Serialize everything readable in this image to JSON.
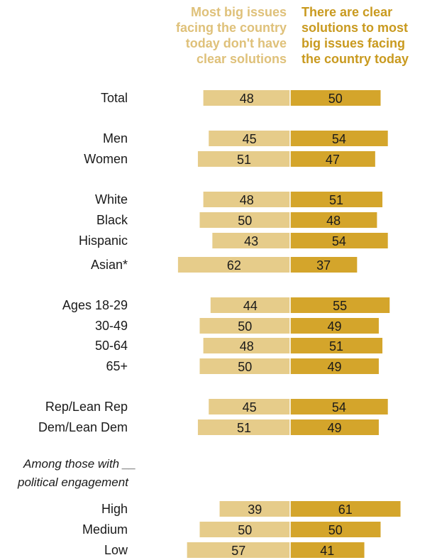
{
  "chart_data": {
    "type": "bar",
    "legend": {
      "left_lines": [
        "Most big issues",
        "facing the country",
        "today don't have",
        "clear solutions"
      ],
      "right_lines": [
        "There are clear",
        "solutions to most",
        "big issues facing",
        "the country today"
      ]
    },
    "series": [
      {
        "name": "Most big issues facing the country today don't have clear solutions",
        "color": "#e6cc8a",
        "values": [
          48,
          45,
          51,
          48,
          50,
          43,
          62,
          44,
          50,
          48,
          50,
          45,
          51,
          39,
          50,
          57
        ]
      },
      {
        "name": "There are clear solutions to most big issues facing the country today",
        "color": "#d4a52b",
        "values": [
          50,
          54,
          47,
          51,
          48,
          54,
          37,
          55,
          49,
          51,
          49,
          54,
          49,
          61,
          50,
          41
        ]
      }
    ],
    "categories": [
      "Total",
      "Men",
      "Women",
      "White",
      "Black",
      "Hispanic",
      "Asian*",
      "Ages 18-29",
      "30-49",
      "50-64",
      "65+",
      "Rep/Lean Rep",
      "Dem/Lean Dem",
      "High",
      "Medium",
      "Low"
    ],
    "section_note": [
      "Among those with __",
      "political engagement"
    ]
  }
}
